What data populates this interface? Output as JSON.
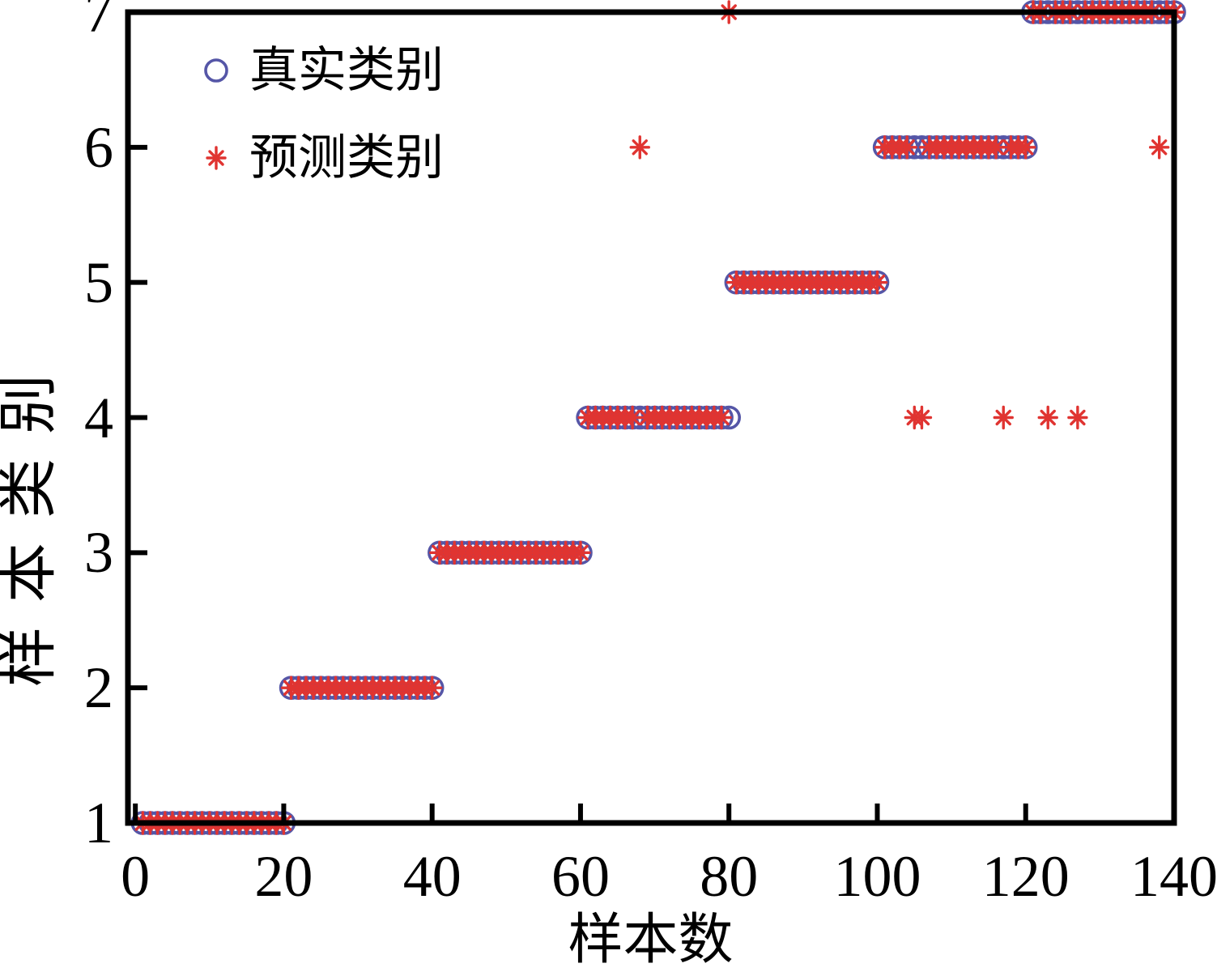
{
  "chart_data": {
    "type": "scatter",
    "title": "",
    "xlabel": "样本数",
    "ylabel": "样本类别",
    "xlim": [
      -1,
      140
    ],
    "ylim": [
      1,
      7
    ],
    "xticks": [
      0,
      20,
      40,
      60,
      80,
      100,
      120,
      140
    ],
    "yticks": [
      1,
      2,
      3,
      4,
      5,
      6,
      7
    ],
    "grid": false,
    "axis_color": "#000000",
    "background": "#ffffff",
    "legend": {
      "position": "upper-left-inside",
      "entries": [
        "真实类别",
        "预测类别"
      ]
    },
    "series": [
      {
        "name": "真实类别",
        "marker": "circle",
        "color": "#5556a7",
        "runs": [
          {
            "y": 1,
            "x_from": 1,
            "x_to": 20
          },
          {
            "y": 2,
            "x_from": 21,
            "x_to": 40
          },
          {
            "y": 3,
            "x_from": 41,
            "x_to": 60
          },
          {
            "y": 4,
            "x_from": 61,
            "x_to": 80
          },
          {
            "y": 5,
            "x_from": 81,
            "x_to": 100
          },
          {
            "y": 6,
            "x_from": 101,
            "x_to": 120
          },
          {
            "y": 7,
            "x_from": 121,
            "x_to": 140
          }
        ],
        "exclude_x": [],
        "extra_points": []
      },
      {
        "name": "预测类别",
        "marker": "asterisk",
        "color": "#e03431",
        "runs": [
          {
            "y": 1,
            "x_from": 1,
            "x_to": 20
          },
          {
            "y": 2,
            "x_from": 21,
            "x_to": 40
          },
          {
            "y": 3,
            "x_from": 41,
            "x_to": 60
          },
          {
            "y": 4,
            "x_from": 61,
            "x_to": 80
          },
          {
            "y": 5,
            "x_from": 81,
            "x_to": 100
          },
          {
            "y": 6,
            "x_from": 101,
            "x_to": 120
          },
          {
            "y": 7,
            "x_from": 121,
            "x_to": 140
          }
        ],
        "exclude_x": [
          68,
          80,
          105,
          106,
          117,
          123,
          127,
          138
        ],
        "extra_points": [
          [
            68,
            6
          ],
          [
            80,
            7
          ],
          [
            105,
            4
          ],
          [
            106,
            4
          ],
          [
            117,
            4
          ],
          [
            123,
            4
          ],
          [
            127,
            4
          ],
          [
            138,
            6
          ]
        ]
      }
    ]
  }
}
